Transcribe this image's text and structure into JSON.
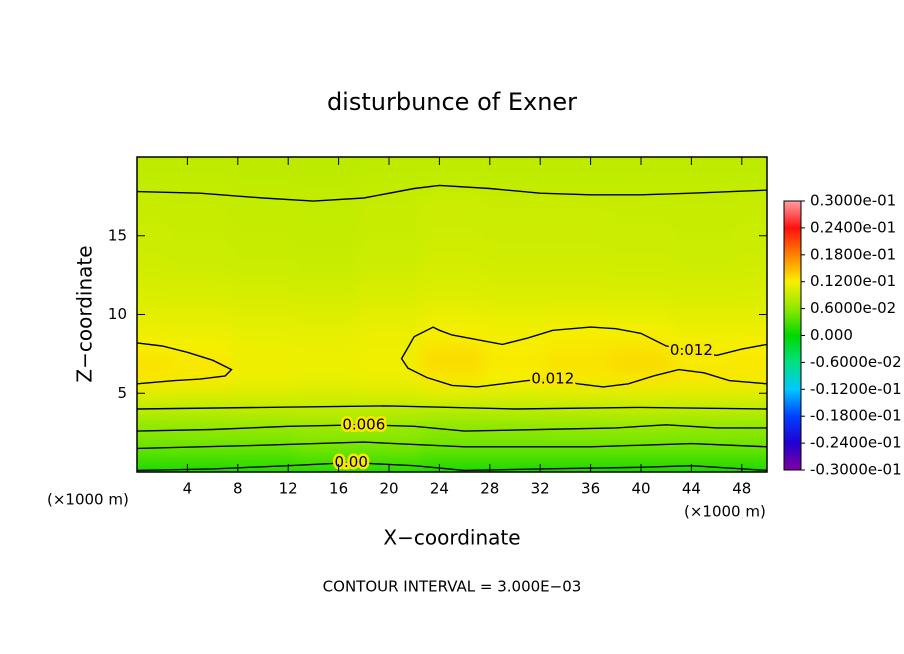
{
  "chart_data": {
    "type": "contour",
    "title": "disturbunce of Exner",
    "xlabel": "X−coordinate",
    "ylabel": "Z−coordinate",
    "x_unit_left": "(×1000 m)",
    "x_unit_right": "(×1000 m)",
    "footer": "CONTOUR INTERVAL = 3.000E−03",
    "xlim": [
      0,
      50
    ],
    "ylim": [
      0,
      20
    ],
    "xticks": [
      4,
      8,
      12,
      16,
      20,
      24,
      28,
      32,
      36,
      40,
      44,
      48
    ],
    "yticks": [
      5,
      10,
      15
    ],
    "field": {
      "x": [
        0,
        5,
        10,
        15,
        20,
        25,
        30,
        35,
        40,
        45,
        50
      ],
      "y": [
        0,
        1,
        2,
        3,
        4,
        5,
        6,
        7,
        8,
        9,
        10,
        11,
        12,
        13,
        14,
        15,
        16,
        17,
        18,
        19,
        20
      ],
      "z": [
        [
          0.0,
          0.0,
          0.001,
          0.001,
          0.001,
          0.0,
          0.0,
          0.0,
          0.0,
          0.0,
          0.0
        ],
        [
          0.003,
          0.003,
          0.003,
          0.0035,
          0.0035,
          0.003,
          0.003,
          0.003,
          0.003,
          0.003,
          0.003
        ],
        [
          0.005,
          0.005,
          0.005,
          0.0055,
          0.0055,
          0.005,
          0.005,
          0.005,
          0.005,
          0.005,
          0.005
        ],
        [
          0.0062,
          0.0064,
          0.0066,
          0.0068,
          0.0066,
          0.006,
          0.0062,
          0.0064,
          0.0066,
          0.0064,
          0.0062
        ],
        [
          0.0085,
          0.0085,
          0.0086,
          0.0087,
          0.0086,
          0.0084,
          0.0085,
          0.0085,
          0.0086,
          0.0085,
          0.0085
        ],
        [
          0.0105,
          0.0104,
          0.0102,
          0.0101,
          0.0102,
          0.0106,
          0.0104,
          0.0105,
          0.0106,
          0.0105,
          0.0105
        ],
        [
          0.0125,
          0.0124,
          0.0114,
          0.0112,
          0.0114,
          0.0125,
          0.012,
          0.0124,
          0.0126,
          0.0125,
          0.0123
        ],
        [
          0.0128,
          0.0125,
          0.0115,
          0.0113,
          0.0116,
          0.0132,
          0.0124,
          0.0128,
          0.0132,
          0.0124,
          0.0125
        ],
        [
          0.0121,
          0.0118,
          0.0113,
          0.0112,
          0.0115,
          0.0126,
          0.0121,
          0.0124,
          0.0126,
          0.0119,
          0.0121
        ],
        [
          0.0114,
          0.0113,
          0.011,
          0.0109,
          0.0112,
          0.0119,
          0.0116,
          0.0118,
          0.0118,
          0.0114,
          0.0115
        ],
        [
          0.0108,
          0.0108,
          0.0106,
          0.0105,
          0.0108,
          0.0112,
          0.011,
          0.0111,
          0.011,
          0.0108,
          0.0108
        ],
        [
          0.0104,
          0.0103,
          0.0101,
          0.01,
          0.0103,
          0.0106,
          0.0105,
          0.0105,
          0.0104,
          0.0103,
          0.0104
        ],
        [
          0.01,
          0.0099,
          0.0097,
          0.0096,
          0.0099,
          0.0102,
          0.0101,
          0.0101,
          0.01,
          0.0099,
          0.01
        ],
        [
          0.0097,
          0.0096,
          0.0094,
          0.0093,
          0.0096,
          0.0099,
          0.0098,
          0.0098,
          0.0097,
          0.0096,
          0.0097
        ],
        [
          0.0095,
          0.0094,
          0.0092,
          0.0091,
          0.0094,
          0.0097,
          0.0096,
          0.0096,
          0.0095,
          0.0094,
          0.0095
        ],
        [
          0.0094,
          0.0093,
          0.0091,
          0.009,
          0.0093,
          0.0096,
          0.0095,
          0.0095,
          0.0094,
          0.0093,
          0.0094
        ],
        [
          0.0093,
          0.0092,
          0.009,
          0.0089,
          0.0092,
          0.0095,
          0.0094,
          0.0094,
          0.0093,
          0.0092,
          0.0093
        ],
        [
          0.0092,
          0.0091,
          0.0089,
          0.0088,
          0.0091,
          0.0094,
          0.0093,
          0.0093,
          0.0092,
          0.0091,
          0.0092
        ],
        [
          0.0089,
          0.0089,
          0.0088,
          0.0087,
          0.0089,
          0.009,
          0.0089,
          0.0089,
          0.0089,
          0.0089,
          0.0089
        ],
        [
          0.0087,
          0.0087,
          0.0086,
          0.0086,
          0.0087,
          0.0087,
          0.0087,
          0.0087,
          0.0087,
          0.0087,
          0.0087
        ],
        [
          0.0085,
          0.0085,
          0.0085,
          0.0085,
          0.0085,
          0.0085,
          0.0085,
          0.0085,
          0.0085,
          0.0085,
          0.0085
        ]
      ]
    },
    "contours": [
      {
        "x": [
          0,
          5,
          10,
          14,
          18,
          22,
          24,
          28,
          32,
          36,
          40,
          44,
          50
        ],
        "y": [
          17.8,
          17.7,
          17.4,
          17.2,
          17.4,
          18.0,
          18.2,
          18.0,
          17.7,
          17.6,
          17.6,
          17.7,
          17.9
        ]
      },
      {
        "x": [
          0,
          2,
          4,
          6,
          7.5,
          7,
          5,
          3,
          0
        ],
        "y": [
          8.2,
          8.0,
          7.6,
          7.1,
          6.5,
          6.1,
          5.9,
          5.8,
          5.6
        ]
      },
      {
        "label": "0.012",
        "x": [
          50,
          48,
          46,
          44,
          42,
          40,
          38,
          36,
          33,
          31,
          29,
          27,
          25,
          24,
          23.5,
          22,
          21,
          21.5,
          23,
          25,
          27,
          29,
          31,
          33,
          35,
          37,
          39,
          41,
          43,
          45,
          47,
          50
        ],
        "y": [
          8.1,
          7.8,
          7.4,
          7.7,
          8.0,
          8.8,
          9.1,
          9.2,
          9.0,
          8.5,
          8.1,
          8.4,
          8.7,
          9.0,
          9.2,
          8.6,
          7.2,
          6.6,
          6.0,
          5.5,
          5.4,
          5.6,
          5.8,
          5.9,
          5.6,
          5.4,
          5.6,
          6.1,
          6.5,
          6.3,
          5.8,
          5.6
        ]
      },
      {
        "x": [
          0,
          10,
          20,
          30,
          40,
          50
        ],
        "y": [
          4.0,
          4.1,
          4.2,
          4.0,
          4.1,
          4.0
        ]
      },
      {
        "label": "0.006",
        "x": [
          0,
          6,
          12,
          18,
          22,
          26,
          32,
          38,
          42,
          46,
          50
        ],
        "y": [
          2.6,
          2.7,
          2.9,
          3.0,
          2.9,
          2.6,
          2.7,
          2.8,
          3.0,
          2.8,
          2.8
        ]
      },
      {
        "x": [
          0,
          10,
          18,
          26,
          36,
          44,
          50
        ],
        "y": [
          1.5,
          1.7,
          1.9,
          1.6,
          1.6,
          1.8,
          1.6
        ]
      },
      {
        "label": "0.00",
        "x": [
          0,
          6,
          12,
          17,
          22,
          26,
          32,
          40,
          44,
          50
        ],
        "y": [
          0.1,
          0.2,
          0.4,
          0.6,
          0.4,
          0.1,
          0.2,
          0.3,
          0.4,
          0.1
        ]
      }
    ],
    "contour_color": "#000000",
    "colorbar": {
      "lim": [
        -0.03,
        0.03
      ],
      "colors": [
        "#8000a0",
        "#2000d0",
        "#0040ff",
        "#00c8ff",
        "#00e080",
        "#00d800",
        "#90e800",
        "#f8f000",
        "#ff8000",
        "#ff1010",
        "#ffa0a0"
      ],
      "ticks": [
        {
          "value": 0.03,
          "label": "0.3000e-01"
        },
        {
          "value": 0.024,
          "label": "0.2400e-01"
        },
        {
          "value": 0.018,
          "label": "0.1800e-01"
        },
        {
          "value": 0.012,
          "label": "0.1200e-01"
        },
        {
          "value": 0.006,
          "label": "0.6000e-02"
        },
        {
          "value": 0,
          "label": "0.000"
        },
        {
          "value": -0.006,
          "label": "-0.6000e-02"
        },
        {
          "value": -0.012,
          "label": "-0.1200e-01"
        },
        {
          "value": -0.018,
          "label": "-0.1800e-01"
        },
        {
          "value": -0.024,
          "label": "-0.2400e-01"
        },
        {
          "value": -0.03,
          "label": "-0.3000e-01"
        }
      ]
    }
  }
}
